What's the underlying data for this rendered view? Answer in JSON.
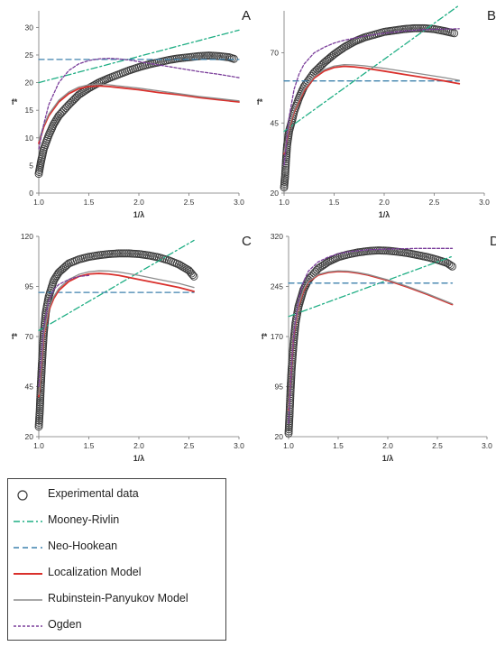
{
  "styles": {
    "experimental": {
      "color": "#3a3a3a"
    },
    "mooney_rivlin": {
      "color": "#1fae84",
      "dash": "7 3 2 3"
    },
    "neo_hookean": {
      "color": "#3f82ad",
      "dash": "6 4"
    },
    "localization": {
      "color": "#d9302c"
    },
    "rubinstein_panyukov": {
      "color": "#8c8c8c"
    },
    "ogden": {
      "color": "#7a3d9a",
      "dash": "3 2"
    }
  },
  "legend": {
    "items": [
      {
        "key": "experimental",
        "label": "Experimental data"
      },
      {
        "key": "mooney_rivlin",
        "label": "Mooney-Rivlin"
      },
      {
        "key": "neo_hookean",
        "label": "Neo-Hookean"
      },
      {
        "key": "localization",
        "label": "Localization Model"
      },
      {
        "key": "rubinstein_panyukov",
        "label": "Rubinstein-Panyukov Model"
      },
      {
        "key": "ogden",
        "label": "Ogden"
      }
    ]
  },
  "chart_data": [
    {
      "panel": "A",
      "type": "scatter",
      "xlabel": "1/λ",
      "ylabel": "f*",
      "xlim": [
        1.0,
        3.0
      ],
      "ylim": [
        0,
        33
      ],
      "xticks": [
        "1.0",
        "1.5",
        "2.0",
        "2.5",
        "3.0"
      ],
      "xtick_values": [
        1.0,
        1.5,
        2.0,
        2.5,
        3.0
      ],
      "yticks": [
        "0",
        "5",
        "10",
        "15",
        "20",
        "25",
        "30"
      ],
      "ytick_values": [
        0,
        5,
        10,
        15,
        20,
        25,
        30
      ],
      "series": [
        {
          "key": "experimental",
          "name": "Experimental data",
          "marker": "circle",
          "x": [
            1.0,
            1.02,
            1.05,
            1.1,
            1.15,
            1.2,
            1.3,
            1.4,
            1.5,
            1.6,
            1.7,
            1.8,
            1.9,
            2.0,
            2.1,
            2.2,
            2.3,
            2.4,
            2.5,
            2.6,
            2.7,
            2.8,
            2.9,
            2.95
          ],
          "y": [
            3.5,
            5.5,
            8.0,
            10.5,
            12.5,
            14.0,
            16.0,
            17.8,
            19.0,
            20.0,
            20.8,
            21.5,
            22.2,
            22.8,
            23.3,
            23.7,
            24.1,
            24.4,
            24.6,
            24.8,
            24.9,
            24.8,
            24.6,
            24.3
          ]
        },
        {
          "key": "mooney_rivlin",
          "name": "Mooney-Rivlin",
          "x": [
            1.0,
            3.0
          ],
          "y": [
            20.0,
            29.5
          ]
        },
        {
          "key": "neo_hookean",
          "name": "Neo-Hookean",
          "x": [
            1.0,
            3.0
          ],
          "y": [
            24.2,
            24.2
          ]
        },
        {
          "key": "localization",
          "name": "Localization Model",
          "x": [
            1.0,
            1.05,
            1.1,
            1.2,
            1.3,
            1.4,
            1.5,
            1.6,
            1.7,
            1.8,
            2.0,
            2.2,
            2.4,
            2.6,
            2.8,
            3.0
          ],
          "y": [
            9.0,
            12.0,
            14.0,
            16.5,
            18.0,
            18.9,
            19.3,
            19.4,
            19.3,
            19.1,
            18.7,
            18.2,
            17.8,
            17.3,
            16.9,
            16.5
          ]
        },
        {
          "key": "rubinstein_panyukov",
          "name": "Rubinstein-Panyukov Model",
          "x": [
            1.0,
            1.05,
            1.1,
            1.2,
            1.3,
            1.4,
            1.5,
            1.6,
            1.7,
            1.8,
            2.0,
            2.2,
            2.4,
            2.6,
            2.8,
            3.0
          ],
          "y": [
            9.5,
            12.3,
            14.3,
            16.8,
            18.3,
            19.2,
            19.6,
            19.7,
            19.6,
            19.4,
            19.0,
            18.5,
            18.0,
            17.5,
            17.1,
            16.7
          ]
        },
        {
          "key": "ogden",
          "name": "Ogden",
          "x": [
            1.0,
            1.05,
            1.1,
            1.2,
            1.3,
            1.4,
            1.5,
            1.6,
            1.7,
            1.8,
            1.9,
            2.0,
            2.2,
            2.4,
            2.6,
            2.8,
            3.0
          ],
          "y": [
            8.0,
            12.5,
            16.0,
            20.0,
            22.2,
            23.4,
            24.0,
            24.3,
            24.4,
            24.3,
            24.1,
            23.8,
            23.2,
            22.6,
            22.0,
            21.5,
            20.9
          ]
        }
      ]
    },
    {
      "panel": "B",
      "type": "scatter",
      "xlabel": "1/λ",
      "ylabel": "f*",
      "xlim": [
        1.0,
        3.0
      ],
      "ylim": [
        20,
        85
      ],
      "xticks": [
        "1.0",
        "1.5",
        "2.0",
        "2.5",
        "3.0"
      ],
      "xtick_values": [
        1.0,
        1.5,
        2.0,
        2.5,
        3.0
      ],
      "yticks": [
        "20",
        "45",
        "70"
      ],
      "ytick_values": [
        20,
        45,
        70
      ],
      "series": [
        {
          "key": "experimental",
          "name": "Experimental data",
          "marker": "circle",
          "x": [
            1.0,
            1.01,
            1.02,
            1.03,
            1.05,
            1.08,
            1.1,
            1.15,
            1.2,
            1.3,
            1.4,
            1.5,
            1.6,
            1.7,
            1.8,
            1.9,
            2.0,
            2.1,
            2.2,
            2.3,
            2.4,
            2.5,
            2.6,
            2.7
          ],
          "y": [
            22.0,
            26.0,
            32.0,
            37.0,
            42.0,
            46.0,
            49.0,
            54.0,
            58.0,
            63.0,
            66.5,
            69.5,
            72.0,
            74.0,
            75.5,
            76.5,
            77.5,
            78.0,
            78.5,
            78.8,
            78.8,
            78.5,
            77.8,
            77.0
          ]
        },
        {
          "key": "mooney_rivlin",
          "name": "Mooney-Rivlin",
          "x": [
            1.0,
            2.75
          ],
          "y": [
            42.0,
            87.0
          ]
        },
        {
          "key": "neo_hookean",
          "name": "Neo-Hookean",
          "x": [
            1.0,
            2.75
          ],
          "y": [
            60.0,
            60.0
          ]
        },
        {
          "key": "localization",
          "name": "Localization Model",
          "x": [
            1.0,
            1.05,
            1.1,
            1.2,
            1.3,
            1.4,
            1.5,
            1.6,
            1.7,
            1.8,
            2.0,
            2.2,
            2.4,
            2.6,
            2.75
          ],
          "y": [
            34.0,
            43.0,
            49.0,
            56.5,
            61.0,
            63.5,
            64.8,
            65.2,
            65.0,
            64.6,
            63.5,
            62.3,
            61.2,
            60.0,
            59.0
          ]
        },
        {
          "key": "rubinstein_panyukov",
          "name": "Rubinstein-Panyukov Model",
          "x": [
            1.0,
            1.05,
            1.1,
            1.2,
            1.3,
            1.4,
            1.5,
            1.6,
            1.7,
            1.8,
            2.0,
            2.2,
            2.4,
            2.6,
            2.75
          ],
          "y": [
            34.5,
            43.5,
            49.5,
            57.0,
            61.5,
            64.0,
            65.3,
            65.8,
            65.7,
            65.4,
            64.5,
            63.4,
            62.3,
            61.2,
            60.2
          ]
        },
        {
          "key": "ogden",
          "name": "Ogden",
          "x": [
            1.0,
            1.05,
            1.1,
            1.15,
            1.2,
            1.3,
            1.4,
            1.5,
            1.6,
            1.8,
            2.0,
            2.2,
            2.4,
            2.6,
            2.75
          ],
          "y": [
            30.0,
            47.0,
            57.0,
            62.5,
            66.0,
            70.0,
            72.0,
            73.5,
            74.5,
            76.0,
            77.0,
            77.8,
            78.3,
            78.5,
            78.6
          ]
        }
      ]
    },
    {
      "panel": "C",
      "type": "scatter",
      "xlabel": "1/λ",
      "ylabel": "f*",
      "xlim": [
        1.0,
        3.0
      ],
      "ylim": [
        20,
        120
      ],
      "xticks": [
        "1.0",
        "1.5",
        "2.0",
        "2.5",
        "3.0"
      ],
      "xtick_values": [
        1.0,
        1.5,
        2.0,
        2.5,
        3.0
      ],
      "yticks": [
        "20",
        "45",
        "70",
        "95",
        "120"
      ],
      "ytick_values": [
        20,
        45,
        70,
        95,
        120
      ],
      "series": [
        {
          "key": "experimental",
          "name": "Experimental data",
          "marker": "circle",
          "x": [
            1.0,
            1.01,
            1.02,
            1.03,
            1.04,
            1.05,
            1.07,
            1.1,
            1.15,
            1.2,
            1.3,
            1.4,
            1.5,
            1.6,
            1.7,
            1.8,
            1.9,
            2.0,
            2.1,
            2.2,
            2.3,
            2.4,
            2.5,
            2.55
          ],
          "y": [
            25.0,
            33.0,
            45.0,
            55.0,
            64.0,
            72.0,
            82.0,
            90.0,
            98.0,
            102.0,
            106.5,
            108.5,
            109.8,
            110.6,
            111.2,
            111.5,
            111.5,
            111.2,
            110.5,
            109.5,
            108.0,
            106.0,
            103.0,
            100.0
          ]
        },
        {
          "key": "mooney_rivlin",
          "name": "Mooney-Rivlin",
          "x": [
            1.0,
            2.55
          ],
          "y": [
            73.0,
            118.0
          ]
        },
        {
          "key": "neo_hookean",
          "name": "Neo-Hookean",
          "x": [
            1.0,
            2.55
          ],
          "y": [
            92.0,
            92.0
          ]
        },
        {
          "key": "localization",
          "name": "Localization Model",
          "x": [
            1.0,
            1.05,
            1.1,
            1.15,
            1.2,
            1.3,
            1.4,
            1.5,
            1.6,
            1.7,
            1.8,
            2.0,
            2.2,
            2.4,
            2.55
          ],
          "y": [
            40.0,
            70.0,
            83.0,
            89.0,
            93.0,
            97.5,
            100.0,
            101.2,
            101.5,
            101.2,
            100.5,
            98.5,
            96.5,
            94.5,
            92.5
          ]
        },
        {
          "key": "rubinstein_panyukov",
          "name": "Rubinstein-Panyukov Model",
          "x": [
            1.0,
            1.05,
            1.1,
            1.15,
            1.2,
            1.3,
            1.4,
            1.5,
            1.6,
            1.7,
            1.8,
            2.0,
            2.2,
            2.4,
            2.55
          ],
          "y": [
            41.0,
            71.0,
            84.0,
            90.0,
            94.0,
            98.5,
            101.0,
            102.3,
            102.8,
            102.7,
            102.2,
            100.5,
            98.5,
            96.5,
            94.5
          ]
        },
        {
          "key": "ogden",
          "name": "Ogden",
          "x": [
            1.0,
            1.05,
            1.1,
            1.15,
            1.2,
            1.3,
            1.4,
            1.5
          ],
          "y": [
            45.0,
            75.0,
            88.0,
            93.5,
            96.0,
            98.5,
            100.0,
            100.5
          ]
        }
      ]
    },
    {
      "panel": "D",
      "type": "scatter",
      "xlabel": "1/λ",
      "ylabel": "f*",
      "xlim": [
        1.0,
        3.0
      ],
      "ylim": [
        20,
        320
      ],
      "xticks": [
        "1.0",
        "1.5",
        "2.0",
        "2.5",
        "3.0"
      ],
      "xtick_values": [
        1.0,
        1.5,
        2.0,
        2.5,
        3.0
      ],
      "yticks": [
        "20",
        "95",
        "170",
        "245",
        "320"
      ],
      "ytick_values": [
        20,
        95,
        170,
        245,
        320
      ],
      "series": [
        {
          "key": "experimental",
          "name": "Experimental data",
          "marker": "circle",
          "x": [
            1.0,
            1.01,
            1.02,
            1.03,
            1.05,
            1.07,
            1.1,
            1.15,
            1.2,
            1.3,
            1.4,
            1.5,
            1.6,
            1.7,
            1.8,
            1.9,
            2.0,
            2.1,
            2.2,
            2.3,
            2.4,
            2.5,
            2.6,
            2.65
          ],
          "y": [
            25.0,
            55.0,
            90.0,
            120.0,
            160.0,
            190.0,
            215.0,
            240.0,
            255.0,
            272.0,
            282.0,
            289.0,
            293.0,
            296.0,
            298.0,
            299.0,
            298.5,
            297.0,
            295.0,
            292.0,
            289.0,
            285.0,
            280.0,
            275.0
          ]
        },
        {
          "key": "mooney_rivlin",
          "name": "Mooney-Rivlin",
          "x": [
            1.0,
            2.65
          ],
          "y": [
            200.0,
            290.0
          ]
        },
        {
          "key": "neo_hookean",
          "name": "Neo-Hookean",
          "x": [
            1.0,
            2.65
          ],
          "y": [
            250.0,
            250.0
          ]
        },
        {
          "key": "localization",
          "name": "Localization Model",
          "x": [
            1.0,
            1.05,
            1.1,
            1.15,
            1.2,
            1.3,
            1.4,
            1.5,
            1.6,
            1.7,
            1.8,
            2.0,
            2.2,
            2.4,
            2.65
          ],
          "y": [
            60.0,
            170.0,
            215.0,
            238.0,
            252.0,
            262.0,
            266.0,
            267.5,
            267.0,
            265.0,
            262.0,
            254.0,
            244.0,
            233.0,
            218.0
          ]
        },
        {
          "key": "rubinstein_panyukov",
          "name": "Rubinstein-Panyukov Model",
          "x": [
            1.0,
            1.05,
            1.1,
            1.15,
            1.2,
            1.3,
            1.4,
            1.5,
            1.6,
            1.7,
            1.8,
            2.0,
            2.2,
            2.4,
            2.65
          ],
          "y": [
            62.0,
            172.0,
            217.0,
            240.0,
            253.0,
            263.0,
            267.0,
            268.5,
            268.0,
            266.0,
            263.0,
            255.0,
            245.0,
            234.0,
            219.0
          ]
        },
        {
          "key": "ogden",
          "name": "Ogden",
          "x": [
            1.0,
            1.03,
            1.06,
            1.1,
            1.15,
            1.2,
            1.3,
            1.4,
            1.5,
            1.6,
            1.8,
            2.0,
            2.3,
            2.65
          ],
          "y": [
            40.0,
            130.0,
            185.0,
            225.0,
            252.0,
            268.0,
            282.0,
            289.0,
            294.0,
            297.0,
            300.0,
            301.0,
            302.0,
            302.0
          ]
        }
      ]
    }
  ]
}
